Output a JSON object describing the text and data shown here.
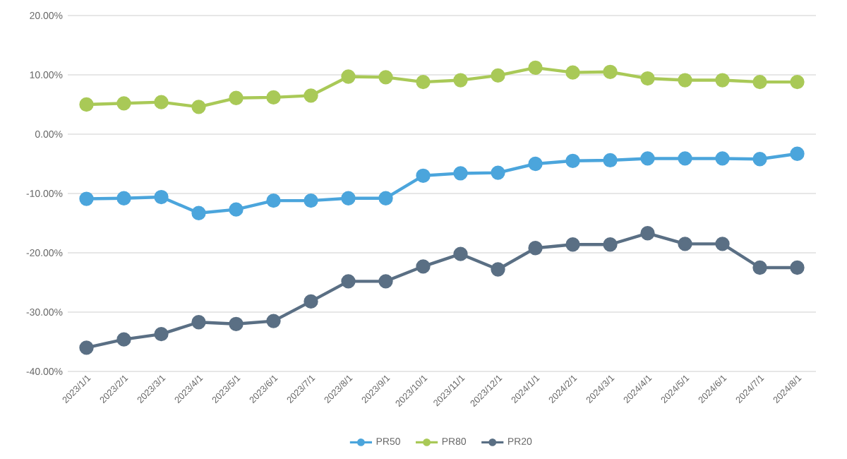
{
  "chart_data": {
    "type": "line",
    "categories": [
      "2023/1/1",
      "2023/2/1",
      "2023/3/1",
      "2023/4/1",
      "2023/5/1",
      "2023/6/1",
      "2023/7/1",
      "2023/8/1",
      "2023/9/1",
      "2023/10/1",
      "2023/11/1",
      "2023/12/1",
      "2024/1/1",
      "2024/2/1",
      "2024/3/1",
      "2024/4/1",
      "2024/5/1",
      "2024/6/1",
      "2024/7/1",
      "2024/8/1"
    ],
    "series": [
      {
        "name": "PR50",
        "color": "#4ba5dc",
        "values": [
          -10.9,
          -10.8,
          -10.6,
          -13.3,
          -12.7,
          -11.2,
          -11.2,
          -10.8,
          -10.8,
          -7.0,
          -6.6,
          -6.5,
          -5.0,
          -4.5,
          -4.4,
          -4.1,
          -4.1,
          -4.1,
          -4.2,
          -3.3
        ]
      },
      {
        "name": "PR80",
        "color": "#a9c957",
        "values": [
          5.0,
          5.2,
          5.4,
          4.6,
          6.1,
          6.2,
          6.5,
          9.7,
          9.6,
          8.8,
          9.1,
          9.9,
          11.2,
          10.4,
          10.5,
          9.4,
          9.1,
          9.1,
          8.8,
          8.8
        ]
      },
      {
        "name": "PR20",
        "color": "#5a6f84",
        "values": [
          -36.0,
          -34.6,
          -33.7,
          -31.7,
          -32.0,
          -31.5,
          -28.2,
          -24.8,
          -24.8,
          -22.3,
          -20.2,
          -22.8,
          -19.2,
          -18.6,
          -18.6,
          -16.7,
          -18.5,
          -18.5,
          -22.5,
          -22.5
        ]
      }
    ],
    "ylim": [
      -40,
      20
    ],
    "yticks": [
      {
        "value": -40,
        "label": "-40.00%"
      },
      {
        "value": -30,
        "label": "-30.00%"
      },
      {
        "value": -20,
        "label": "-20.00%"
      },
      {
        "value": -10,
        "label": "-10.00%"
      },
      {
        "value": 0,
        "label": "0.00%"
      },
      {
        "value": 10,
        "label": "10.00%"
      },
      {
        "value": 20,
        "label": "20.00%"
      }
    ],
    "grid": "y",
    "legend": "bottom",
    "marker": "circle",
    "line_style": "solid"
  }
}
